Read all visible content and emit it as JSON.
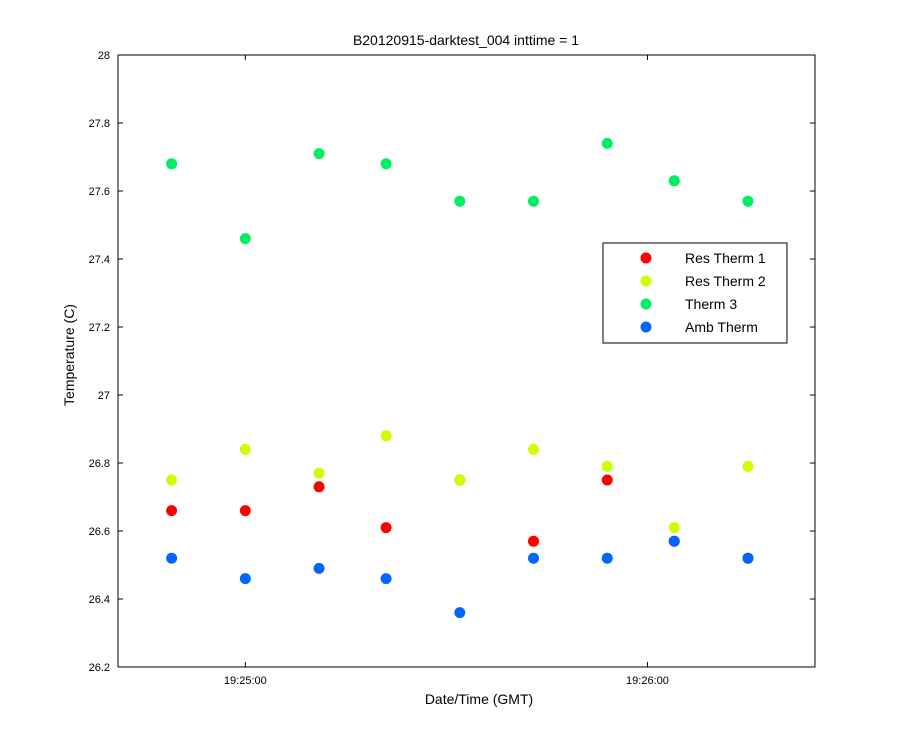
{
  "chart_data": {
    "type": "scatter",
    "title": "B20120915-darktest_004 inttime = 1",
    "xlabel": "Date/Time (GMT)",
    "ylabel": "Temperature (C)",
    "xlim": [
      "19:24:41",
      "19:26:25"
    ],
    "ylim": [
      26.2,
      28
    ],
    "x_ticks": [
      "19:25:00",
      "19:26:00"
    ],
    "y_ticks": [
      26.2,
      26.4,
      26.6,
      26.8,
      27,
      27.2,
      27.4,
      27.6,
      27.8,
      28
    ],
    "grid": false,
    "legend_position": "right",
    "x": [
      "19:24:49",
      "19:25:00",
      "19:25:11",
      "19:25:21",
      "19:25:32",
      "19:25:43",
      "19:25:54",
      "19:26:04",
      "19:26:15"
    ],
    "series": [
      {
        "name": "Res Therm 1",
        "color": "#ff0000",
        "values": [
          26.66,
          26.66,
          26.73,
          26.61,
          26.75,
          26.57,
          26.75,
          26.57,
          26.52
        ]
      },
      {
        "name": "Res Therm 2",
        "color": "#ccff00",
        "values": [
          26.75,
          26.84,
          26.77,
          26.88,
          26.75,
          26.84,
          26.79,
          26.61,
          26.79
        ]
      },
      {
        "name": "Therm 3",
        "color": "#00ee66",
        "values": [
          27.68,
          27.46,
          27.71,
          27.68,
          27.57,
          27.57,
          27.74,
          27.63,
          27.57
        ]
      },
      {
        "name": "Amb Therm",
        "color": "#0066ff",
        "values": [
          26.52,
          26.46,
          26.49,
          26.46,
          26.36,
          26.52,
          26.52,
          26.57,
          26.52
        ]
      }
    ]
  }
}
